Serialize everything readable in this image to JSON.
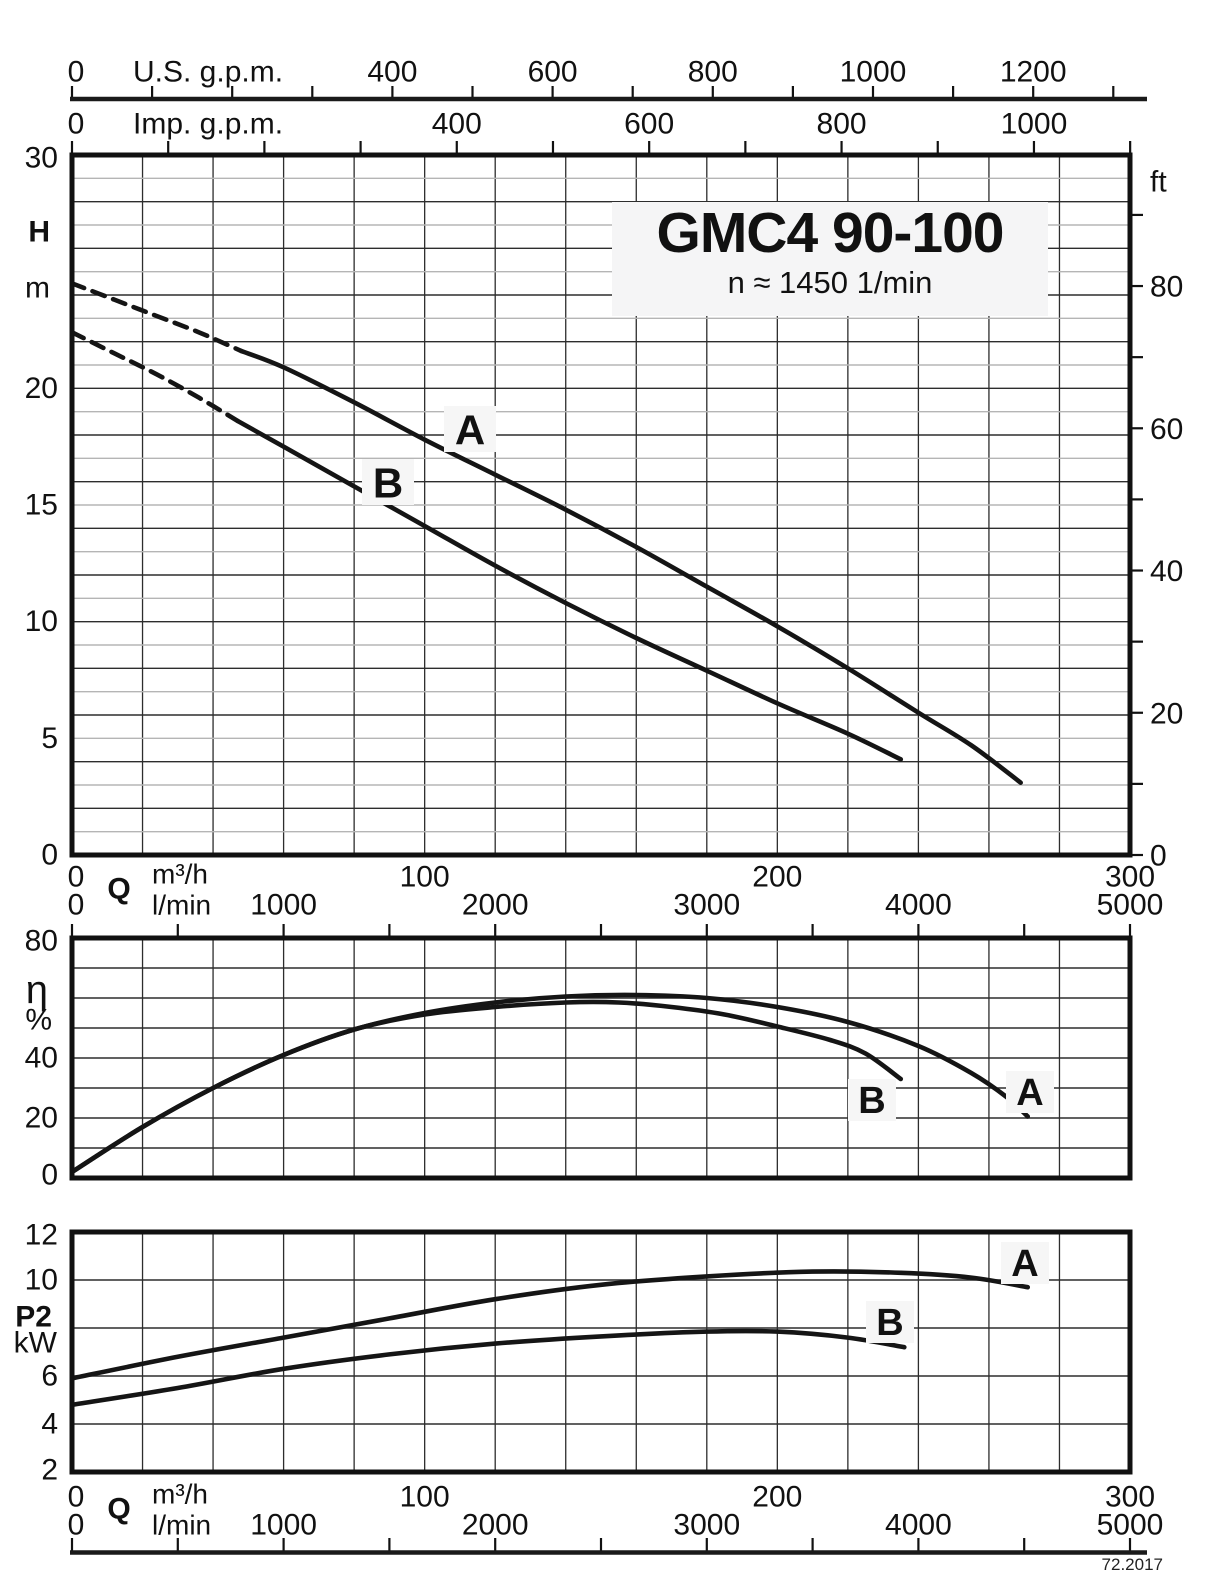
{
  "page": {
    "footer": "72.2017"
  },
  "title_block": {
    "title": "GMC4 90-100",
    "subtitle": "n ≈ 1450 1/min"
  },
  "colors": {
    "curve": "#151515",
    "grid_dark": "#2d2d2d",
    "grid_light": "#b5b5b5",
    "border": "#111111",
    "label_bg": "#f6f6f6"
  },
  "chart_data": {
    "type": "line",
    "title": "GMC4 90-100",
    "subtitle": "n ≈ 1450 1/min",
    "x_axis": {
      "label": "Q",
      "units": [
        {
          "name": "m³/h",
          "range": [
            0,
            300
          ],
          "tick_labels": [
            0,
            100,
            200,
            300
          ]
        },
        {
          "name": "l/min",
          "range": [
            0,
            5000
          ],
          "tick_labels": [
            0,
            1000,
            2000,
            3000,
            4000,
            5000
          ],
          "minor_tick_step": 500
        },
        {
          "name": "U.S. g.p.m.",
          "range": [
            0,
            1320
          ],
          "tick_labels": [
            0,
            400,
            600,
            800,
            1000,
            1200
          ],
          "minor_tick_step": 100
        },
        {
          "name": "Imp. g.p.m.",
          "range": [
            0,
            1100
          ],
          "tick_labels": [
            0,
            400,
            600,
            800,
            1000
          ],
          "minor_tick_step": 100
        }
      ]
    },
    "panels": [
      {
        "id": "head",
        "y_axis": {
          "label": "H",
          "unit": "m",
          "range": [
            0,
            30
          ],
          "tick_labels": [
            0,
            5,
            10,
            15,
            20,
            30
          ],
          "grid_step": 1
        },
        "y_axis_right": {
          "unit": "ft",
          "range": [
            0,
            98.4
          ],
          "tick_labels": [
            0,
            20,
            40,
            60,
            80
          ],
          "minor_tick_step": 10
        },
        "series": [
          {
            "name": "A",
            "dashed_points": [
              [
                0,
                24.5
              ],
              [
                12,
                23.8
              ],
              [
                24,
                23.1
              ],
              [
                36,
                22.4
              ],
              [
                48,
                21.6
              ]
            ],
            "points": [
              [
                48,
                21.6
              ],
              [
                60,
                20.9
              ],
              [
                80,
                19.4
              ],
              [
                100,
                17.8
              ],
              [
                120,
                16.3
              ],
              [
                140,
                14.8
              ],
              [
                160,
                13.2
              ],
              [
                180,
                11.5
              ],
              [
                200,
                9.8
              ],
              [
                220,
                8.0
              ],
              [
                240,
                6.1
              ],
              [
                255,
                4.7
              ],
              [
                269,
                3.1
              ]
            ]
          },
          {
            "name": "B",
            "dashed_points": [
              [
                0,
                22.4
              ],
              [
                12,
                21.5
              ],
              [
                24,
                20.6
              ],
              [
                36,
                19.6
              ],
              [
                47,
                18.6
              ]
            ],
            "points": [
              [
                47,
                18.6
              ],
              [
                60,
                17.5
              ],
              [
                80,
                15.8
              ],
              [
                100,
                14.1
              ],
              [
                120,
                12.4
              ],
              [
                140,
                10.8
              ],
              [
                160,
                9.3
              ],
              [
                180,
                7.9
              ],
              [
                200,
                6.5
              ],
              [
                220,
                5.2
              ],
              [
                235,
                4.1
              ]
            ]
          }
        ]
      },
      {
        "id": "efficiency",
        "y_axis": {
          "label": "η",
          "unit": "%",
          "range": [
            0,
            80
          ],
          "tick_labels": [
            0,
            20,
            40,
            80
          ],
          "grid_step": 10
        },
        "series": [
          {
            "name": "A",
            "points": [
              [
                0,
                2
              ],
              [
                20,
                17
              ],
              [
                40,
                30
              ],
              [
                60,
                41
              ],
              [
                80,
                49.5
              ],
              [
                100,
                55
              ],
              [
                120,
                58.5
              ],
              [
                140,
                60.5
              ],
              [
                160,
                61
              ],
              [
                180,
                60
              ],
              [
                200,
                57
              ],
              [
                220,
                52
              ],
              [
                240,
                44
              ],
              [
                255,
                35
              ],
              [
                265,
                27
              ],
              [
                271,
                20.5
              ]
            ]
          },
          {
            "name": "B",
            "points": [
              [
                0,
                2
              ],
              [
                20,
                17
              ],
              [
                40,
                30
              ],
              [
                60,
                41
              ],
              [
                80,
                49.5
              ],
              [
                100,
                54.5
              ],
              [
                120,
                57
              ],
              [
                140,
                58.5
              ],
              [
                155,
                58.5
              ],
              [
                170,
                57
              ],
              [
                185,
                54.5
              ],
              [
                200,
                50.5
              ],
              [
                215,
                46
              ],
              [
                225,
                41.5
              ],
              [
                235,
                33
              ]
            ]
          }
        ]
      },
      {
        "id": "power",
        "y_axis": {
          "label": "P2",
          "unit": "kW",
          "range": [
            2,
            12
          ],
          "tick_labels": [
            2,
            4,
            6,
            10,
            12
          ],
          "grid_step": 2
        },
        "series": [
          {
            "name": "A",
            "points": [
              [
                0,
                5.9
              ],
              [
                30,
                6.8
              ],
              [
                60,
                7.6
              ],
              [
                90,
                8.4
              ],
              [
                120,
                9.2
              ],
              [
                150,
                9.8
              ],
              [
                180,
                10.15
              ],
              [
                210,
                10.35
              ],
              [
                235,
                10.3
              ],
              [
                255,
                10.1
              ],
              [
                271,
                9.7
              ]
            ]
          },
          {
            "name": "B",
            "points": [
              [
                0,
                4.8
              ],
              [
                30,
                5.5
              ],
              [
                60,
                6.3
              ],
              [
                90,
                6.9
              ],
              [
                120,
                7.35
              ],
              [
                150,
                7.65
              ],
              [
                180,
                7.85
              ],
              [
                200,
                7.85
              ],
              [
                220,
                7.6
              ],
              [
                236,
                7.2
              ]
            ]
          }
        ]
      }
    ]
  }
}
